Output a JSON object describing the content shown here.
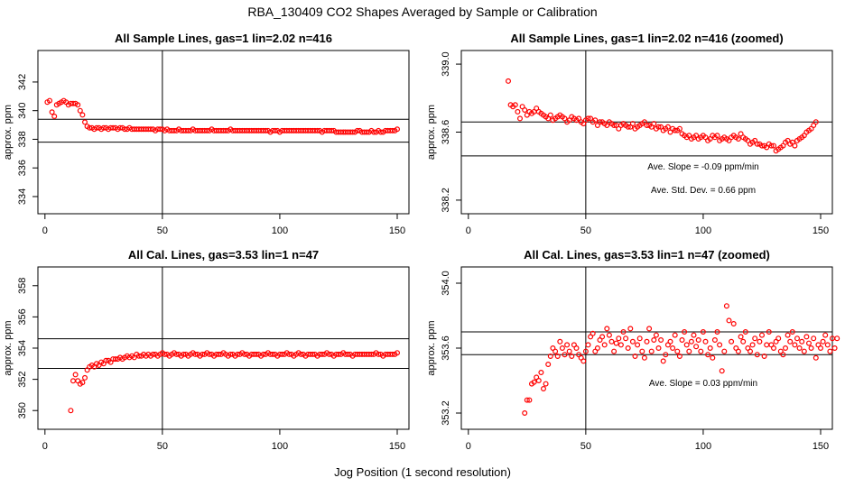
{
  "figure": {
    "title": "RBA_130409  CO2 Shapes Averaged by Sample or Calibration",
    "xlabel": "Jog Position (1 second resolution)"
  },
  "colors": {
    "points": "#ff0000",
    "axes": "#000000",
    "background": "#ffffff"
  },
  "chart_data": [
    {
      "type": "scatter",
      "title": "All Sample Lines, gas=1 lin=2.02 n=416",
      "ylabel": "approx. ppm",
      "xlim": [
        -3,
        155
      ],
      "ylim": [
        332.8,
        344.2
      ],
      "xticks": [
        0,
        50,
        100,
        150
      ],
      "yticks": [
        334,
        336,
        338,
        340,
        342
      ],
      "vline": 50,
      "hlines": [
        339.4,
        337.8
      ],
      "annotations": [],
      "x_start": 1,
      "values": [
        340.6,
        340.7,
        339.9,
        339.6,
        340.4,
        340.5,
        340.6,
        340.7,
        340.6,
        340.4,
        340.5,
        340.5,
        340.5,
        340.4,
        340.0,
        339.7,
        339.2,
        338.9,
        338.8,
        338.8,
        338.7,
        338.8,
        338.8,
        338.7,
        338.8,
        338.8,
        338.7,
        338.8,
        338.8,
        338.8,
        338.7,
        338.8,
        338.8,
        338.7,
        338.7,
        338.8,
        338.7,
        338.7,
        338.7,
        338.7,
        338.7,
        338.7,
        338.7,
        338.7,
        338.7,
        338.7,
        338.6,
        338.7,
        338.7,
        338.7,
        338.6,
        338.7,
        338.6,
        338.6,
        338.6,
        338.6,
        338.7,
        338.6,
        338.6,
        338.6,
        338.6,
        338.6,
        338.7,
        338.6,
        338.6,
        338.6,
        338.6,
        338.6,
        338.6,
        338.6,
        338.7,
        338.6,
        338.6,
        338.6,
        338.6,
        338.6,
        338.6,
        338.6,
        338.7,
        338.6,
        338.6,
        338.6,
        338.6,
        338.6,
        338.6,
        338.6,
        338.6,
        338.6,
        338.6,
        338.6,
        338.6,
        338.6,
        338.6,
        338.6,
        338.6,
        338.5,
        338.6,
        338.6,
        338.6,
        338.5,
        338.6,
        338.6,
        338.6,
        338.6,
        338.6,
        338.6,
        338.6,
        338.6,
        338.6,
        338.6,
        338.6,
        338.6,
        338.6,
        338.6,
        338.6,
        338.6,
        338.6,
        338.5,
        338.6,
        338.6,
        338.6,
        338.6,
        338.6,
        338.5,
        338.5,
        338.5,
        338.5,
        338.5,
        338.5,
        338.5,
        338.5,
        338.5,
        338.6,
        338.6,
        338.5,
        338.5,
        338.5,
        338.5,
        338.6,
        338.5,
        338.5,
        338.6,
        338.5,
        338.5,
        338.6,
        338.6,
        338.6,
        338.6,
        338.6,
        338.7
      ]
    },
    {
      "type": "scatter",
      "title": "All Sample Lines, gas=1 lin=2.02 n=416 (zoomed)",
      "ylabel": "approx. ppm",
      "xlim": [
        -3,
        155
      ],
      "ylim": [
        338.12,
        339.08
      ],
      "xticks": [
        0,
        50,
        100,
        150
      ],
      "yticks": [
        338.2,
        338.6,
        339.0
      ],
      "ytick_labels": [
        "338.2",
        "338.6",
        "339.0"
      ],
      "vline": 50,
      "hlines": [
        338.66,
        338.46
      ],
      "annotations": [
        "Ave. Slope =  -0.09  ppm/min",
        "Ave. Std. Dev. =  0.66  ppm"
      ],
      "x_start": 17,
      "values": [
        338.9,
        338.76,
        338.75,
        338.76,
        338.72,
        338.68,
        338.75,
        338.73,
        338.7,
        338.72,
        338.71,
        338.72,
        338.74,
        338.72,
        338.71,
        338.7,
        338.69,
        338.68,
        338.7,
        338.67,
        338.68,
        338.69,
        338.7,
        338.69,
        338.68,
        338.66,
        338.67,
        338.69,
        338.68,
        338.67,
        338.68,
        338.66,
        338.65,
        338.67,
        338.68,
        338.68,
        338.66,
        338.67,
        338.64,
        338.66,
        338.66,
        338.65,
        338.64,
        338.66,
        338.65,
        338.64,
        338.64,
        338.62,
        338.64,
        338.65,
        338.64,
        338.63,
        338.63,
        338.65,
        338.62,
        338.63,
        338.64,
        338.65,
        338.66,
        338.64,
        338.64,
        338.63,
        338.65,
        338.62,
        338.63,
        338.63,
        338.61,
        338.62,
        338.63,
        338.6,
        338.62,
        338.61,
        338.61,
        338.62,
        338.59,
        338.58,
        338.57,
        338.58,
        338.56,
        338.57,
        338.58,
        338.56,
        338.57,
        338.58,
        338.57,
        338.55,
        338.56,
        338.58,
        338.57,
        338.58,
        338.55,
        338.56,
        338.57,
        338.56,
        338.55,
        338.57,
        338.58,
        338.57,
        338.56,
        338.59,
        338.57,
        338.56,
        338.55,
        338.53,
        338.54,
        338.55,
        338.53,
        338.53,
        338.52,
        338.52,
        338.51,
        338.53,
        338.52,
        338.52,
        338.49,
        338.5,
        338.51,
        338.52,
        338.54,
        338.55,
        338.53,
        338.54,
        338.52,
        338.55,
        338.56,
        338.57,
        338.58,
        338.6,
        338.61,
        338.62,
        338.64,
        338.66
      ]
    },
    {
      "type": "scatter",
      "title": "All Cal. Lines, gas=3.53 lin=1 n=47",
      "ylabel": "approx. ppm",
      "xlim": [
        -3,
        155
      ],
      "ylim": [
        348.8,
        359.2
      ],
      "xticks": [
        0,
        50,
        100,
        150
      ],
      "yticks": [
        350,
        352,
        354,
        356,
        358
      ],
      "vline": 50,
      "hlines": [
        354.6,
        352.7
      ],
      "annotations": [],
      "x_start": 11,
      "values": [
        350.0,
        351.9,
        352.3,
        351.9,
        351.7,
        351.8,
        352.1,
        352.6,
        352.8,
        352.9,
        352.8,
        353.0,
        352.9,
        353.1,
        353.0,
        353.2,
        353.2,
        353.1,
        353.3,
        353.3,
        353.3,
        353.4,
        353.3,
        353.4,
        353.5,
        353.4,
        353.5,
        353.4,
        353.6,
        353.5,
        353.5,
        353.6,
        353.5,
        353.6,
        353.5,
        353.6,
        353.6,
        353.5,
        353.6,
        353.7,
        353.6,
        353.6,
        353.5,
        353.6,
        353.7,
        353.6,
        353.6,
        353.5,
        353.6,
        353.6,
        353.5,
        353.6,
        353.7,
        353.6,
        353.6,
        353.5,
        353.6,
        353.6,
        353.7,
        353.6,
        353.6,
        353.5,
        353.6,
        353.6,
        353.6,
        353.7,
        353.6,
        353.5,
        353.6,
        353.6,
        353.5,
        353.6,
        353.6,
        353.7,
        353.6,
        353.6,
        353.5,
        353.6,
        353.6,
        353.6,
        353.6,
        353.5,
        353.6,
        353.6,
        353.7,
        353.6,
        353.6,
        353.6,
        353.5,
        353.6,
        353.6,
        353.6,
        353.7,
        353.6,
        353.6,
        353.5,
        353.6,
        353.7,
        353.6,
        353.6,
        353.5,
        353.6,
        353.6,
        353.6,
        353.6,
        353.5,
        353.6,
        353.6,
        353.6,
        353.7,
        353.6,
        353.6,
        353.5,
        353.6,
        353.6,
        353.6,
        353.7,
        353.6,
        353.6,
        353.6,
        353.5,
        353.6,
        353.6,
        353.6,
        353.6,
        353.6,
        353.6,
        353.6,
        353.6,
        353.6,
        353.7,
        353.6,
        353.6,
        353.5,
        353.6,
        353.6,
        353.6,
        353.6,
        353.6,
        353.7
      ]
    },
    {
      "type": "scatter",
      "title": "All Cal. Lines, gas=3.53 lin=1 n=47 (zoomed)",
      "ylabel": "approx. ppm",
      "xlim": [
        -3,
        155
      ],
      "ylim": [
        353.1,
        354.1
      ],
      "xticks": [
        0,
        50,
        100,
        150
      ],
      "yticks": [
        353.2,
        353.6,
        354.0
      ],
      "ytick_labels": [
        "353.2",
        "353.6",
        "354.0"
      ],
      "vline": 50,
      "hlines": [
        353.7,
        353.56
      ],
      "annotations": [
        "Ave. Slope =  0.03  ppm/min"
      ],
      "x_start": 24,
      "values": [
        353.2,
        353.28,
        353.28,
        353.38,
        353.39,
        353.42,
        353.4,
        353.45,
        353.35,
        353.38,
        353.5,
        353.55,
        353.6,
        353.58,
        353.55,
        353.64,
        353.6,
        353.56,
        353.62,
        353.58,
        353.55,
        353.62,
        353.6,
        353.56,
        353.54,
        353.52,
        353.58,
        353.62,
        353.67,
        353.69,
        353.58,
        353.6,
        353.65,
        353.67,
        353.62,
        353.72,
        353.68,
        353.64,
        353.58,
        353.63,
        353.66,
        353.62,
        353.7,
        353.66,
        353.6,
        353.72,
        353.64,
        353.55,
        353.62,
        353.66,
        353.58,
        353.54,
        353.64,
        353.72,
        353.58,
        353.65,
        353.68,
        353.6,
        353.65,
        353.52,
        353.56,
        353.62,
        353.64,
        353.6,
        353.68,
        353.58,
        353.55,
        353.65,
        353.7,
        353.62,
        353.58,
        353.64,
        353.68,
        353.61,
        353.65,
        353.58,
        353.7,
        353.64,
        353.56,
        353.6,
        353.54,
        353.65,
        353.7,
        353.62,
        353.46,
        353.58,
        353.86,
        353.77,
        353.64,
        353.75,
        353.6,
        353.58,
        353.67,
        353.64,
        353.7,
        353.6,
        353.58,
        353.62,
        353.66,
        353.56,
        353.64,
        353.68,
        353.55,
        353.62,
        353.7,
        353.62,
        353.6,
        353.64,
        353.66,
        353.58,
        353.56,
        353.6,
        353.68,
        353.64,
        353.7,
        353.62,
        353.66,
        353.6,
        353.64,
        353.58,
        353.67,
        353.63,
        353.6,
        353.66,
        353.54,
        353.62,
        353.6,
        353.64,
        353.68,
        353.62,
        353.58,
        353.66,
        353.6,
        353.66
      ]
    }
  ]
}
